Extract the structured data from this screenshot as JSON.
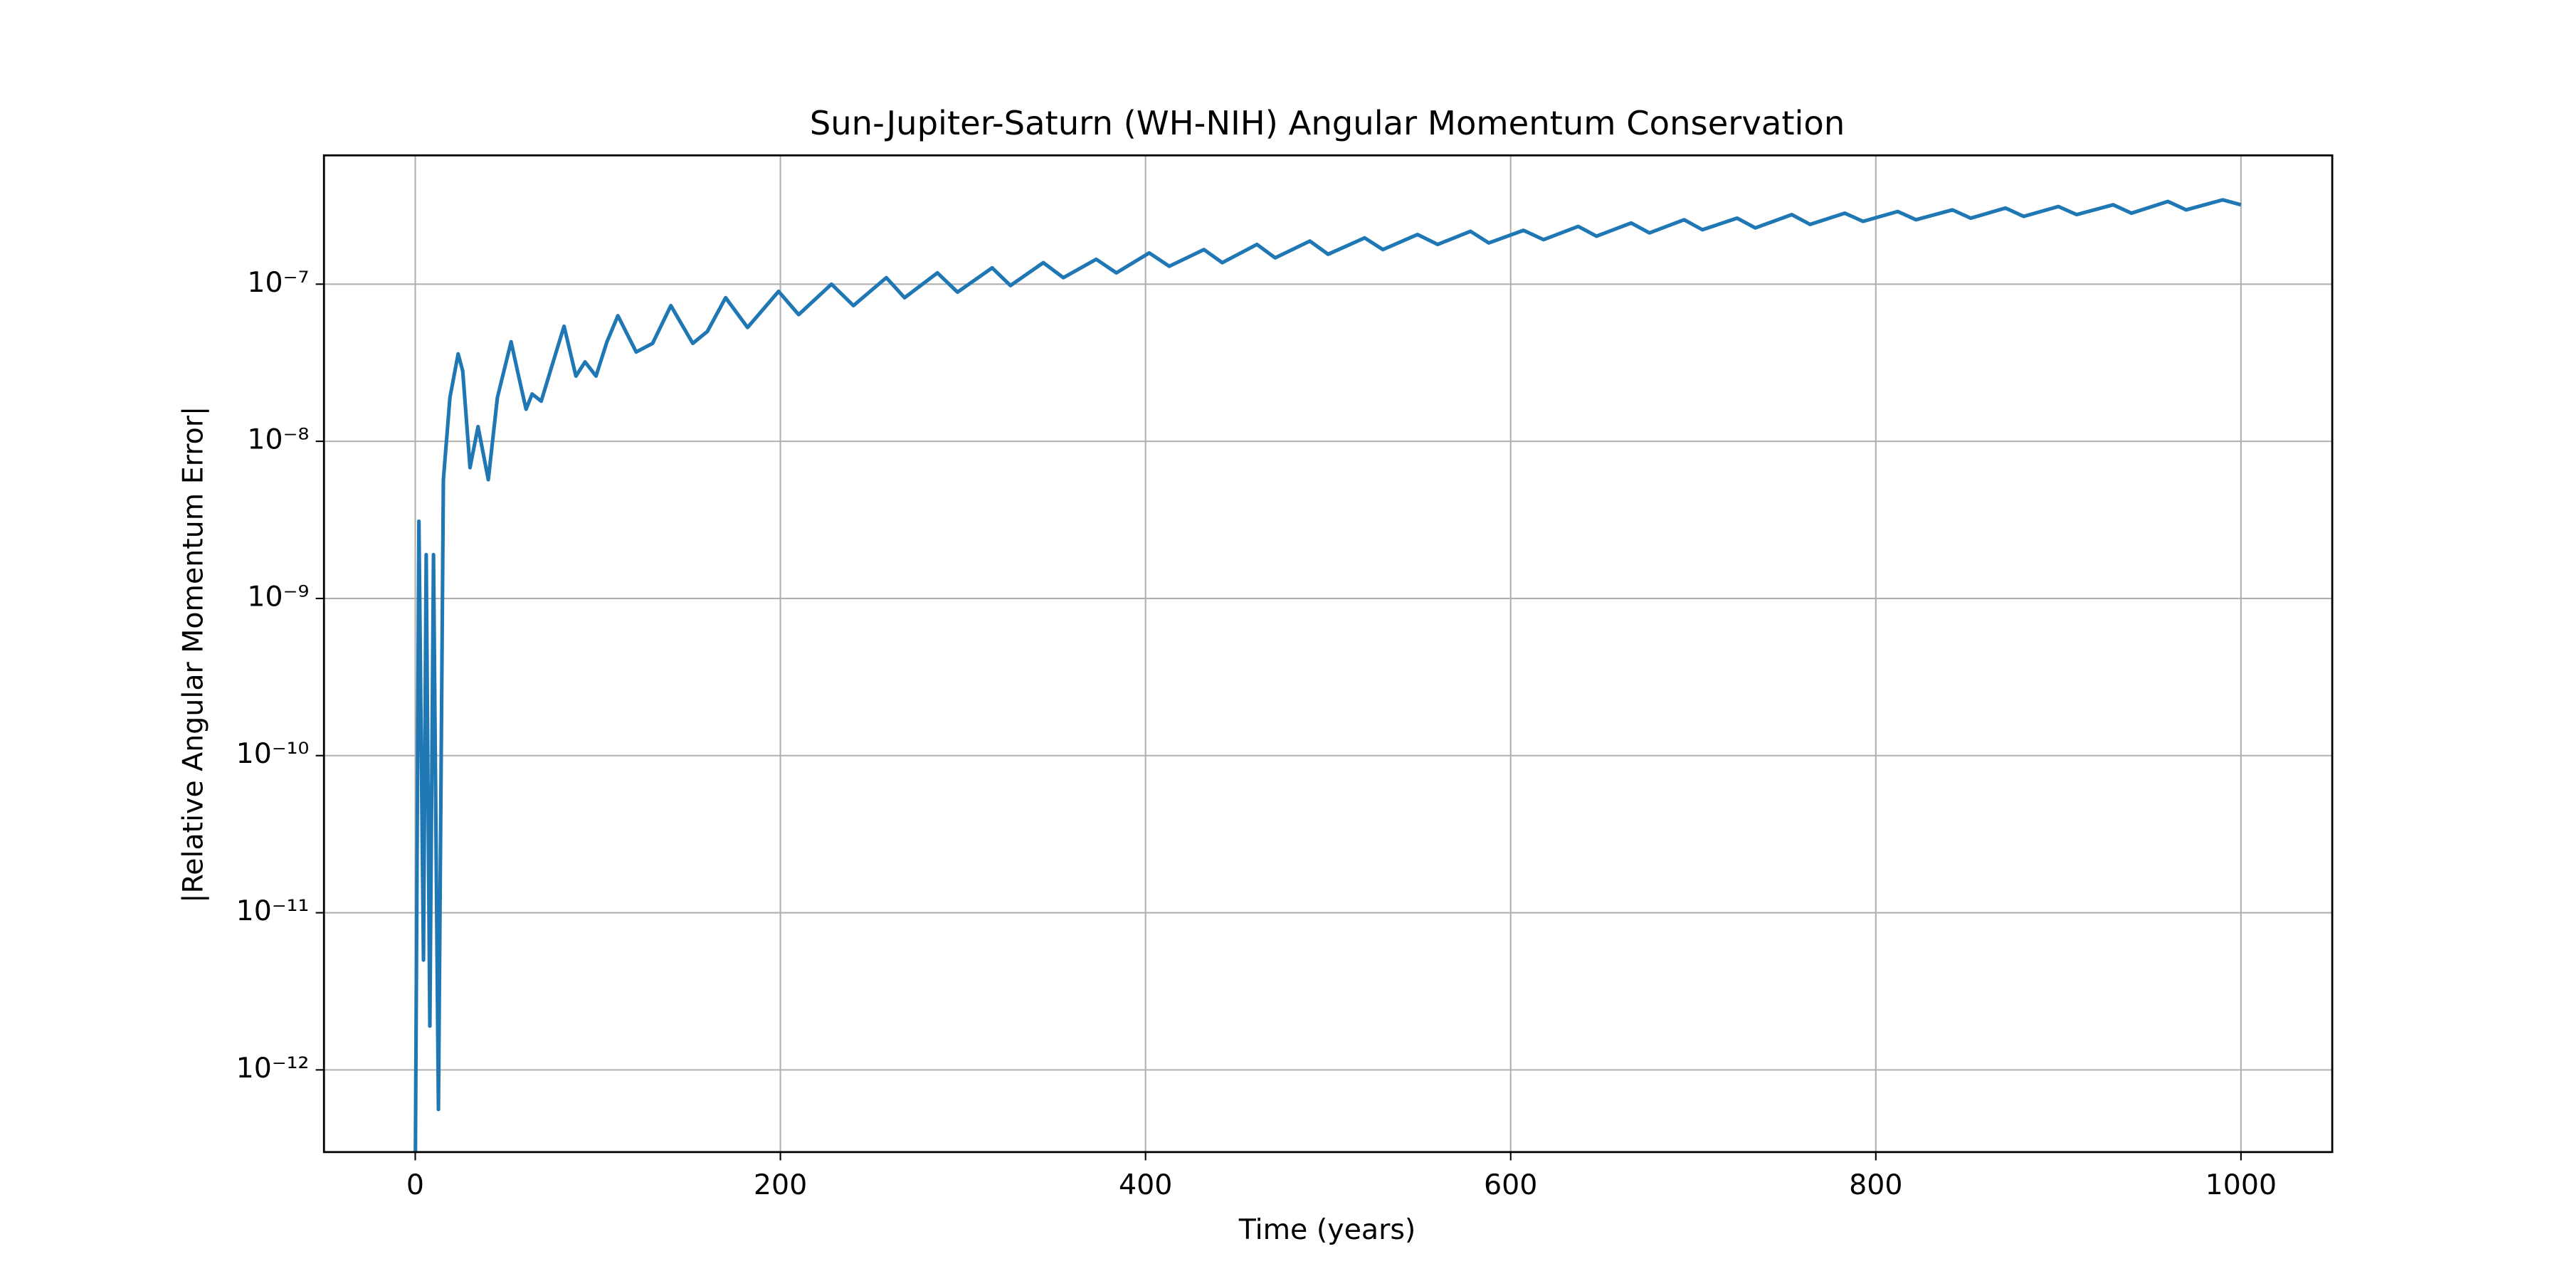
{
  "chart_data": {
    "type": "line",
    "title": "Sun-Jupiter-Saturn (WH-NIH) Angular Momentum Conservation",
    "xlabel": "Time (years)",
    "ylabel": "|Relative Angular Momentum Error|",
    "log_y": true,
    "grid": true,
    "xlim": [
      -50,
      1050
    ],
    "ylim": [
      3e-13,
      6.6e-07
    ],
    "xticks": [
      0,
      200,
      400,
      600,
      800,
      1000
    ],
    "yticks": [
      {
        "value": 1e-12,
        "label": "10⁻¹²"
      },
      {
        "value": 1e-11,
        "label": "10⁻¹¹"
      },
      {
        "value": 1e-10,
        "label": "10⁻¹⁰"
      },
      {
        "value": 1e-09,
        "label": "10⁻⁹"
      },
      {
        "value": 1e-08,
        "label": "10⁻⁸"
      },
      {
        "value": 1e-07,
        "label": "10⁻⁷"
      }
    ],
    "x": [
      0,
      2,
      4.5,
      6,
      8,
      10,
      12.7,
      15.4,
      19,
      23.5,
      26,
      30,
      34.4,
      40,
      45,
      52.5,
      56,
      60.7,
      64,
      69,
      74,
      81.5,
      88,
      93,
      99,
      105,
      111,
      121,
      130,
      140,
      152,
      160,
      170,
      182,
      199,
      210,
      228,
      240,
      258,
      268,
      286,
      297,
      316,
      326,
      344,
      355,
      373,
      384,
      402,
      413,
      432,
      442,
      461,
      471,
      490,
      500,
      520,
      530,
      549,
      560,
      578,
      588,
      607,
      618,
      637,
      647,
      666,
      676,
      695,
      705,
      724,
      734,
      754,
      764,
      783,
      793,
      812,
      822,
      842,
      852,
      871,
      881,
      900,
      910,
      930,
      940,
      960,
      970,
      990,
      1000
    ],
    "series": [
      {
        "color": "#1f77b4",
        "values": [
          2e-13,
          3.1e-09,
          5e-12,
          1.9e-09,
          1.9e-12,
          1.9e-09,
          5.6e-13,
          5.7e-09,
          1.9e-08,
          3.6e-08,
          2.8e-08,
          6.8e-09,
          1.24e-08,
          5.7e-09,
          1.9e-08,
          4.3e-08,
          2.8e-08,
          1.6e-08,
          2e-08,
          1.8e-08,
          2.8e-08,
          5.4e-08,
          2.6e-08,
          3.2e-08,
          2.6e-08,
          4.3e-08,
          6.3e-08,
          3.7e-08,
          4.2e-08,
          7.3e-08,
          4.2e-08,
          5e-08,
          8.2e-08,
          5.3e-08,
          9e-08,
          6.4e-08,
          1e-07,
          7.3e-08,
          1.1e-07,
          8.2e-08,
          1.18e-07,
          8.9e-08,
          1.27e-07,
          9.8e-08,
          1.37e-07,
          1.1e-07,
          1.44e-07,
          1.18e-07,
          1.58e-07,
          1.3e-07,
          1.66e-07,
          1.37e-07,
          1.79e-07,
          1.47e-07,
          1.88e-07,
          1.55e-07,
          1.97e-07,
          1.66e-07,
          2.07e-07,
          1.79e-07,
          2.17e-07,
          1.83e-07,
          2.2e-07,
          1.92e-07,
          2.33e-07,
          2.02e-07,
          2.45e-07,
          2.12e-07,
          2.57e-07,
          2.22e-07,
          2.63e-07,
          2.28e-07,
          2.77e-07,
          2.4e-07,
          2.83e-07,
          2.51e-07,
          2.9e-07,
          2.57e-07,
          2.97e-07,
          2.63e-07,
          3.05e-07,
          2.7e-07,
          3.12e-07,
          2.77e-07,
          3.2e-07,
          2.83e-07,
          3.36e-07,
          2.97e-07,
          3.44e-07,
          3.2e-07
        ]
      }
    ]
  }
}
